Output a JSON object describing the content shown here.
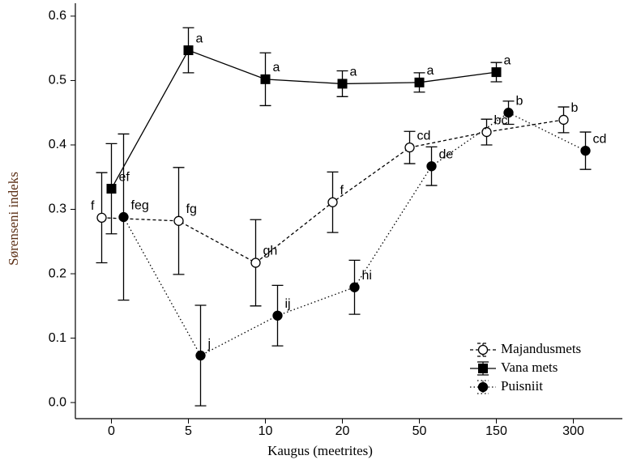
{
  "chart_data": {
    "type": "line",
    "xlabel": "Kaugus (meetrites)",
    "ylabel": "Sørenseni indeks",
    "categories": [
      "0",
      "5",
      "10",
      "20",
      "50",
      "150",
      "300"
    ],
    "ylim": [
      -0.025,
      0.62
    ],
    "yticks": [
      {
        "value": 0,
        "label": "0.0"
      },
      0.1,
      0.2,
      0.3,
      0.4,
      0.5,
      0.6
    ],
    "legend": "lower right",
    "series": [
      {
        "name": "Majandusmets",
        "marker": "open-circle",
        "line": "dashed",
        "values": [
          0.287,
          0.282,
          0.217,
          0.311,
          0.396,
          0.42,
          0.439
        ],
        "errors": [
          0.07,
          0.083,
          0.067,
          0.047,
          0.025,
          0.02,
          0.02
        ],
        "letters": [
          "f",
          "fg",
          "gh",
          "f",
          "cd",
          "bc",
          "b"
        ]
      },
      {
        "name": "Vana mets",
        "marker": "square",
        "line": "solid",
        "values": [
          0.332,
          0.547,
          0.502,
          0.495,
          0.497,
          0.513,
          null
        ],
        "errors": [
          0.07,
          0.035,
          0.041,
          0.02,
          0.015,
          0.015,
          null
        ],
        "letters": [
          "ef",
          "a",
          "a",
          "a",
          "a",
          "a",
          null
        ]
      },
      {
        "name": "Puisniit",
        "marker": "circle",
        "line": "dotted",
        "values": [
          0.288,
          0.073,
          0.135,
          0.179,
          0.367,
          0.45,
          0.391
        ],
        "errors": [
          0.129,
          0.078,
          0.047,
          0.042,
          0.03,
          0.018,
          0.029
        ],
        "letters": [
          "feg",
          "j",
          "ij",
          "hi",
          "de",
          "b",
          "cd"
        ]
      }
    ]
  }
}
